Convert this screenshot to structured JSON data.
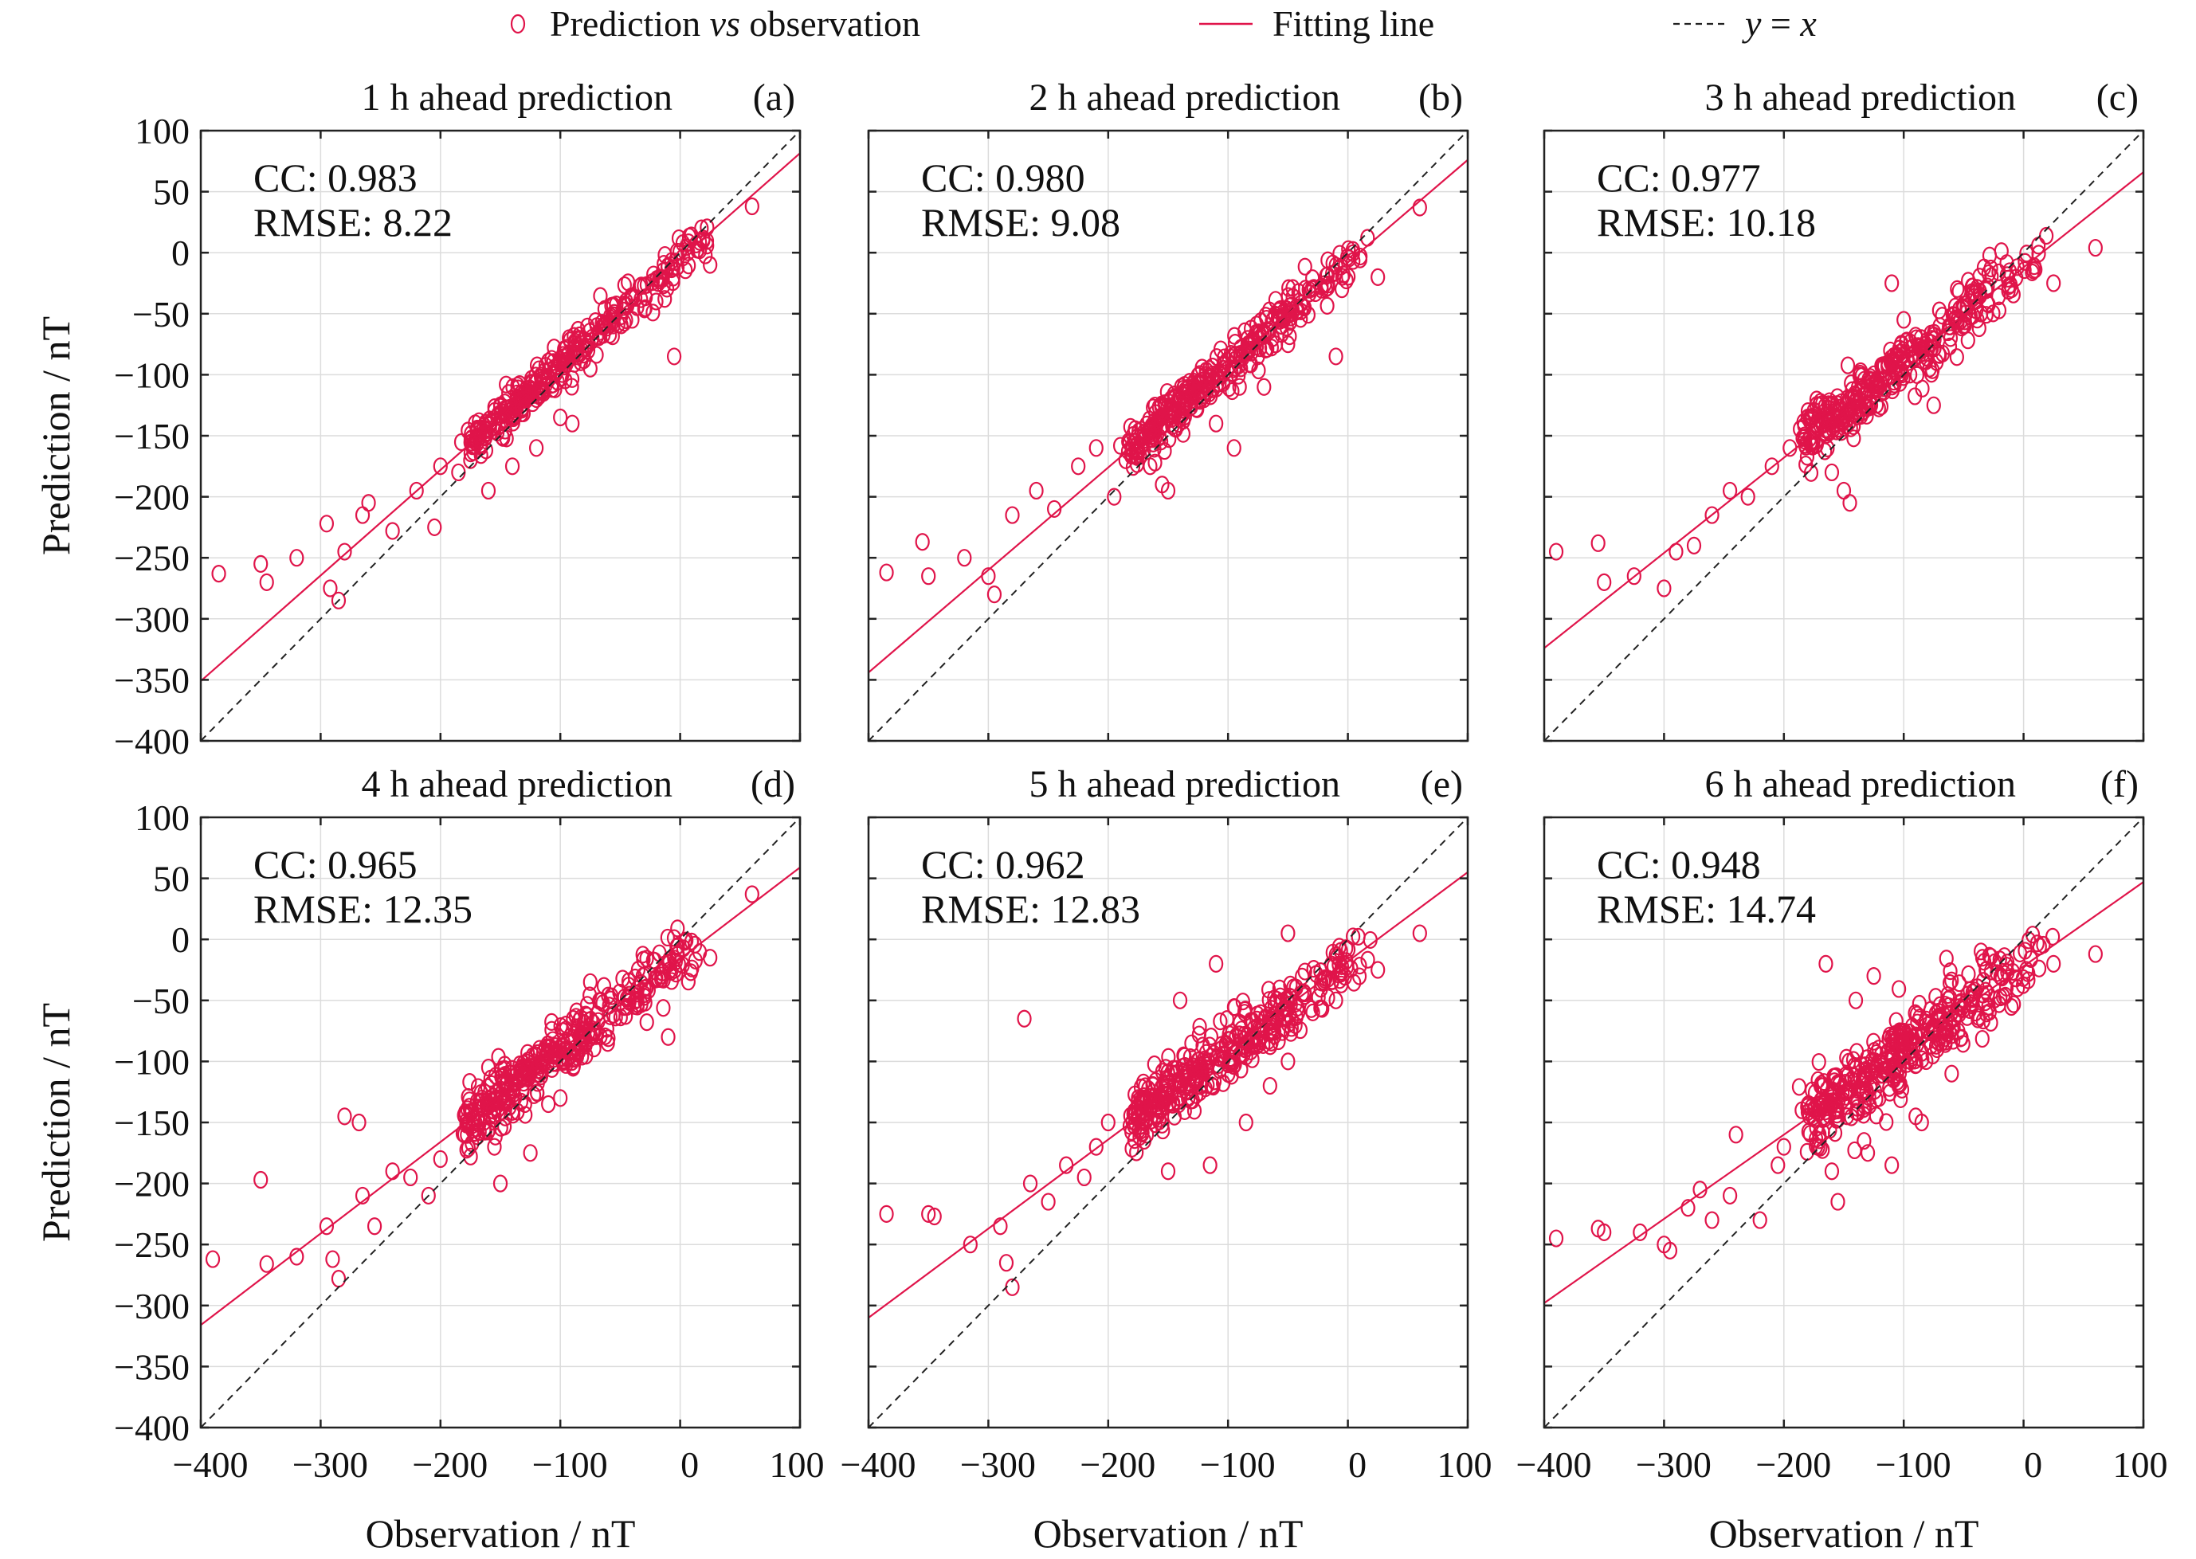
{
  "legend": {
    "items": [
      {
        "marker": "circle",
        "label_main": "Prediction ",
        "label_italic": "vs",
        "label_tail": " observation"
      },
      {
        "marker": "solid-line",
        "label_main": "Fitting line",
        "label_italic": "",
        "label_tail": ""
      },
      {
        "marker": "dashed-line",
        "label_main": "",
        "label_italic": "y",
        "label_tail": " = ",
        "label_italic2": "x"
      }
    ]
  },
  "colors": {
    "points": "#e0144a",
    "fit_line": "#e0144a",
    "identity_line": "#222222",
    "grid": "#dcdcdc",
    "axis": "#222222"
  },
  "axes": {
    "xlabel": "Observation / nT",
    "ylabel": "Prediction / nT",
    "x_ticks": [
      -400,
      -300,
      -200,
      -100,
      0,
      100
    ],
    "y_ticks": [
      100,
      50,
      0,
      -50,
      -100,
      -150,
      -200,
      -250,
      -300,
      -350,
      -400
    ],
    "x_tick_labels": [
      "−400",
      "−300",
      "−200",
      "−100",
      "0",
      "100"
    ],
    "y_tick_labels": [
      "100",
      "50",
      "0",
      "−50",
      "−100",
      "−150",
      "−200",
      "−250",
      "−300",
      "−350",
      "−400"
    ]
  },
  "chart_data": [
    {
      "type": "scatter",
      "panel": "(a)",
      "title": "1 h ahead prediction",
      "cc_text": "CC: 0.983",
      "rmse_text": "RMSE: 8.22",
      "xlim": [
        -400,
        100
      ],
      "ylim": [
        -400,
        100
      ],
      "grid": true,
      "fit_line": {
        "slope": 0.865,
        "intercept": -5
      },
      "identity_line": true,
      "outliers": [
        [
          -385,
          -263
        ],
        [
          -350,
          -255
        ],
        [
          -345,
          -270
        ],
        [
          -320,
          -250
        ],
        [
          -295,
          -222
        ],
        [
          -292,
          -275
        ],
        [
          -285,
          -285
        ],
        [
          -280,
          -245
        ],
        [
          -265,
          -215
        ],
        [
          -260,
          -205
        ],
        [
          -240,
          -228
        ],
        [
          -220,
          -195
        ],
        [
          -205,
          -225
        ],
        [
          -200,
          -175
        ],
        [
          -185,
          -180
        ],
        [
          -175,
          -170
        ],
        [
          -160,
          -195
        ],
        [
          -150,
          -125
        ],
        [
          -140,
          -175
        ],
        [
          -120,
          -160
        ],
        [
          -100,
          -135
        ],
        [
          -90,
          -140
        ],
        [
          -75,
          -95
        ],
        [
          -40,
          -55
        ],
        [
          -20,
          -40
        ],
        [
          -5,
          -85
        ],
        [
          25,
          -10
        ],
        [
          60,
          38
        ]
      ],
      "cloud": {
        "x_from": -175,
        "x_to": 25,
        "count": 320,
        "spread": 7.5
      }
    },
    {
      "type": "scatter",
      "panel": "(b)",
      "title": "2 h ahead prediction",
      "cc_text": "CC: 0.980",
      "rmse_text": "RMSE: 9.08",
      "xlim": [
        -400,
        100
      ],
      "ylim": [
        -400,
        100
      ],
      "grid": true,
      "fit_line": {
        "slope": 0.84,
        "intercept": -8
      },
      "identity_line": true,
      "outliers": [
        [
          -385,
          -262
        ],
        [
          -355,
          -237
        ],
        [
          -350,
          -265
        ],
        [
          -320,
          -250
        ],
        [
          -300,
          -265
        ],
        [
          -295,
          -280
        ],
        [
          -280,
          -215
        ],
        [
          -260,
          -195
        ],
        [
          -245,
          -210
        ],
        [
          -225,
          -175
        ],
        [
          -210,
          -160
        ],
        [
          -195,
          -200
        ],
        [
          -165,
          -175
        ],
        [
          -155,
          -190
        ],
        [
          -150,
          -195
        ],
        [
          -110,
          -140
        ],
        [
          -95,
          -160
        ],
        [
          -70,
          -110
        ],
        [
          -50,
          -75
        ],
        [
          -10,
          -85
        ],
        [
          -5,
          -30
        ],
        [
          25,
          -20
        ],
        [
          60,
          37
        ]
      ],
      "cloud": {
        "x_from": -185,
        "x_to": 25,
        "count": 320,
        "spread": 9
      }
    },
    {
      "type": "scatter",
      "panel": "(c)",
      "title": "3 h ahead prediction",
      "cc_text": "CC: 0.977",
      "rmse_text": "RMSE: 10.18",
      "xlim": [
        -400,
        100
      ],
      "ylim": [
        -400,
        100
      ],
      "grid": true,
      "fit_line": {
        "slope": 0.78,
        "intercept": -12
      },
      "identity_line": true,
      "outliers": [
        [
          -390,
          -245
        ],
        [
          -355,
          -238
        ],
        [
          -350,
          -270
        ],
        [
          -325,
          -265
        ],
        [
          -300,
          -275
        ],
        [
          -290,
          -245
        ],
        [
          -275,
          -240
        ],
        [
          -260,
          -215
        ],
        [
          -245,
          -195
        ],
        [
          -230,
          -200
        ],
        [
          -210,
          -175
        ],
        [
          -195,
          -160
        ],
        [
          -180,
          -135
        ],
        [
          -165,
          -145
        ],
        [
          -160,
          -180
        ],
        [
          -150,
          -195
        ],
        [
          -145,
          -205
        ],
        [
          -110,
          -25
        ],
        [
          -100,
          -55
        ],
        [
          -75,
          -125
        ],
        [
          -50,
          -60
        ],
        [
          -10,
          -30
        ],
        [
          25,
          -25
        ],
        [
          60,
          4
        ]
      ],
      "cloud": {
        "x_from": -185,
        "x_to": 25,
        "count": 340,
        "spread": 11
      }
    },
    {
      "type": "scatter",
      "panel": "(d)",
      "title": "4 h ahead prediction",
      "cc_text": "CC: 0.965",
      "rmse_text": "RMSE: 12.35",
      "xlim": [
        -400,
        100
      ],
      "ylim": [
        -400,
        100
      ],
      "grid": true,
      "fit_line": {
        "slope": 0.75,
        "intercept": -16
      },
      "identity_line": true,
      "outliers": [
        [
          -390,
          -262
        ],
        [
          -350,
          -197
        ],
        [
          -345,
          -266
        ],
        [
          -320,
          -260
        ],
        [
          -295,
          -235
        ],
        [
          -290,
          -262
        ],
        [
          -285,
          -278
        ],
        [
          -280,
          -145
        ],
        [
          -268,
          -150
        ],
        [
          -265,
          -210
        ],
        [
          -255,
          -235
        ],
        [
          -240,
          -190
        ],
        [
          -225,
          -195
        ],
        [
          -210,
          -210
        ],
        [
          -200,
          -180
        ],
        [
          -180,
          -160
        ],
        [
          -160,
          -105
        ],
        [
          -155,
          -170
        ],
        [
          -150,
          -200
        ],
        [
          -125,
          -175
        ],
        [
          -110,
          -135
        ],
        [
          -100,
          -130
        ],
        [
          -75,
          -35
        ],
        [
          -30,
          -40
        ],
        [
          -10,
          -80
        ],
        [
          25,
          -15
        ],
        [
          60,
          37
        ]
      ],
      "cloud": {
        "x_from": -180,
        "x_to": 25,
        "count": 360,
        "spread": 12
      }
    },
    {
      "type": "scatter",
      "panel": "(e)",
      "title": "5 h ahead prediction",
      "cc_text": "CC: 0.962",
      "rmse_text": "RMSE: 12.83",
      "xlim": [
        -400,
        100
      ],
      "ylim": [
        -400,
        100
      ],
      "grid": true,
      "fit_line": {
        "slope": 0.73,
        "intercept": -18
      },
      "identity_line": true,
      "outliers": [
        [
          -385,
          -225
        ],
        [
          -350,
          -225
        ],
        [
          -345,
          -227
        ],
        [
          -315,
          -250
        ],
        [
          -290,
          -235
        ],
        [
          -285,
          -265
        ],
        [
          -280,
          -285
        ],
        [
          -270,
          -65
        ],
        [
          -265,
          -200
        ],
        [
          -250,
          -215
        ],
        [
          -235,
          -185
        ],
        [
          -220,
          -195
        ],
        [
          -210,
          -170
        ],
        [
          -200,
          -150
        ],
        [
          -175,
          -130
        ],
        [
          -170,
          -165
        ],
        [
          -150,
          -190
        ],
        [
          -140,
          -50
        ],
        [
          -115,
          -185
        ],
        [
          -110,
          -20
        ],
        [
          -85,
          -150
        ],
        [
          -65,
          -120
        ],
        [
          -50,
          -100
        ],
        [
          -50,
          5
        ],
        [
          -10,
          -50
        ],
        [
          25,
          -25
        ],
        [
          60,
          5
        ]
      ],
      "cloud": {
        "x_from": -180,
        "x_to": 25,
        "count": 360,
        "spread": 13
      }
    },
    {
      "type": "scatter",
      "panel": "(f)",
      "title": "6 h ahead prediction",
      "cc_text": "CC: 0.948",
      "rmse_text": "RMSE: 14.74",
      "xlim": [
        -400,
        100
      ],
      "ylim": [
        -400,
        100
      ],
      "grid": true,
      "fit_line": {
        "slope": 0.69,
        "intercept": -22
      },
      "identity_line": true,
      "outliers": [
        [
          -390,
          -245
        ],
        [
          -355,
          -237
        ],
        [
          -350,
          -240
        ],
        [
          -320,
          -240
        ],
        [
          -300,
          -250
        ],
        [
          -295,
          -255
        ],
        [
          -280,
          -220
        ],
        [
          -270,
          -205
        ],
        [
          -260,
          -230
        ],
        [
          -245,
          -210
        ],
        [
          -240,
          -160
        ],
        [
          -220,
          -230
        ],
        [
          -205,
          -185
        ],
        [
          -200,
          -170
        ],
        [
          -185,
          -140
        ],
        [
          -165,
          -20
        ],
        [
          -160,
          -190
        ],
        [
          -155,
          -215
        ],
        [
          -140,
          -50
        ],
        [
          -130,
          -175
        ],
        [
          -125,
          -30
        ],
        [
          -110,
          -185
        ],
        [
          -90,
          -145
        ],
        [
          -85,
          -150
        ],
        [
          -60,
          -110
        ],
        [
          -40,
          -60
        ],
        [
          -5,
          -40
        ],
        [
          25,
          -20
        ],
        [
          60,
          -12
        ]
      ],
      "cloud": {
        "x_from": -180,
        "x_to": 25,
        "count": 380,
        "spread": 15
      }
    }
  ]
}
